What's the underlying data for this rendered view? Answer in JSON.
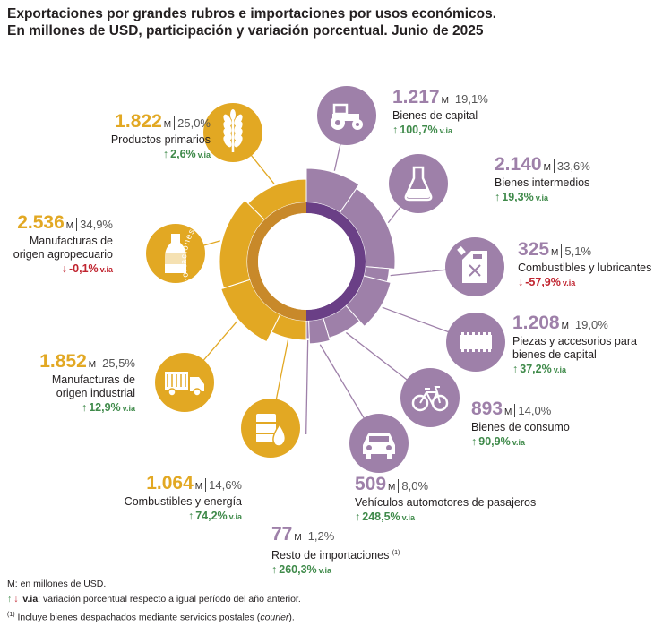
{
  "title": {
    "line1": "Exportaciones por grandes rubros e importaciones por usos económicos.",
    "line2": "En millones de USD, participación y variación porcentual. Junio de 2025"
  },
  "ring_labels": {
    "left": "Exportaciones",
    "right": "Importaciones"
  },
  "colors": {
    "exports": "#e2a823",
    "imports": "#9e80a9",
    "imports_inner": "#6a3f86",
    "exports_inner": "#c8892a",
    "up": "#3f8a4a",
    "down": "#c0242f"
  },
  "chart_data": {
    "type": "pie",
    "unit": "M",
    "groups": [
      {
        "name": "Exportaciones",
        "items": [
          {
            "name": "Productos primarios",
            "value": 1822,
            "value_label": "1.822",
            "share_label": "25,0%",
            "var_label": "2,6%",
            "direction": "up",
            "icon": "wheat-icon"
          },
          {
            "name": "Manufacturas de origen agropecuario",
            "name_lines": [
              "Manufacturas de",
              "origen agropecuario"
            ],
            "value": 2536,
            "value_label": "2.536",
            "share_label": "34,9%",
            "var_label": "-0,1%",
            "direction": "down",
            "icon": "bottle-icon"
          },
          {
            "name": "Manufacturas de origen industrial",
            "name_lines": [
              "Manufacturas de",
              "origen industrial"
            ],
            "value": 1852,
            "value_label": "1.852",
            "share_label": "25,5%",
            "var_label": "12,9%",
            "direction": "up",
            "icon": "truck-icon"
          },
          {
            "name": "Combustibles y energía",
            "value": 1064,
            "value_label": "1.064",
            "share_label": "14,6%",
            "var_label": "74,2%",
            "direction": "up",
            "icon": "fuel-barrel-icon"
          }
        ]
      },
      {
        "name": "Importaciones",
        "items": [
          {
            "name": "Bienes de capital",
            "value": 1217,
            "value_label": "1.217",
            "share_label": "19,1%",
            "var_label": "100,7%",
            "direction": "up",
            "icon": "tractor-icon"
          },
          {
            "name": "Bienes intermedios",
            "value": 2140,
            "value_label": "2.140",
            "share_label": "33,6%",
            "var_label": "19,3%",
            "direction": "up",
            "icon": "flask-icon"
          },
          {
            "name": "Combustibles y lubricantes",
            "value": 325,
            "value_label": "325",
            "share_label": "5,1%",
            "var_label": "-57,9%",
            "direction": "down",
            "icon": "jerrycan-icon"
          },
          {
            "name": "Piezas y accesorios para bienes de capital",
            "name_lines": [
              "Piezas y accesorios para",
              "bienes de capital"
            ],
            "value": 1208,
            "value_label": "1.208",
            "share_label": "19,0%",
            "var_label": "37,2%",
            "direction": "up",
            "icon": "gear-part-icon"
          },
          {
            "name": "Bienes de consumo",
            "value": 893,
            "value_label": "893",
            "share_label": "14,0%",
            "var_label": "90,9%",
            "direction": "up",
            "icon": "bicycle-icon"
          },
          {
            "name": "Vehículos automotores de pasajeros",
            "value": 509,
            "value_label": "509",
            "share_label": "8,0%",
            "var_label": "248,5%",
            "direction": "up",
            "icon": "car-icon"
          },
          {
            "name": "Resto de importaciones",
            "note_mark": "(1)",
            "value": 77,
            "value_label": "77",
            "share_label": "1,2%",
            "var_label": "260,3%",
            "direction": "up",
            "icon": ""
          }
        ]
      }
    ],
    "via_label": "v.ia"
  },
  "notes": {
    "m": "M: en millones de USD.",
    "via_term": "v.ia",
    "via_text": ": variación porcentual respecto a igual período del año anterior.",
    "footnote_mark": "(1)",
    "footnote_text": " Incluye bienes despachados mediante servicios postales (",
    "footnote_em": "courier",
    "footnote_end": ")."
  }
}
